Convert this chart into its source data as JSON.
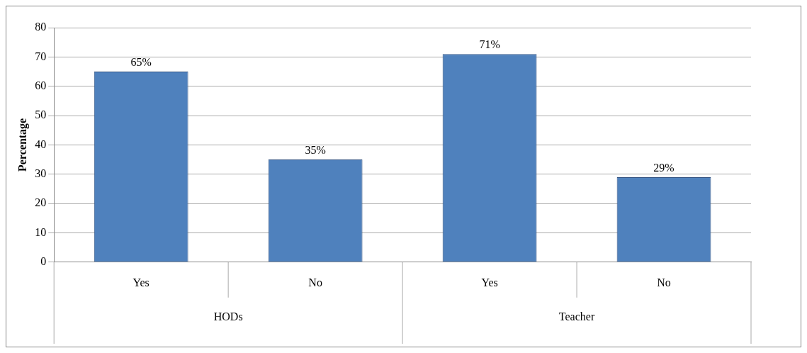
{
  "chart_data": {
    "type": "bar",
    "ylabel": "Percentage",
    "categories": [
      "Yes",
      "No",
      "Yes",
      "No"
    ],
    "values": [
      65,
      35,
      71,
      29
    ],
    "color": "#4f81bd",
    "value_labels": [
      "65%",
      "35%",
      "71%",
      "29%"
    ],
    "ylim": [
      0,
      80
    ],
    "yticks": [
      0,
      10,
      20,
      30,
      40,
      50,
      60,
      70,
      80
    ],
    "grid": "y",
    "annotations": [
      "HODs",
      "Teacher"
    ]
  }
}
